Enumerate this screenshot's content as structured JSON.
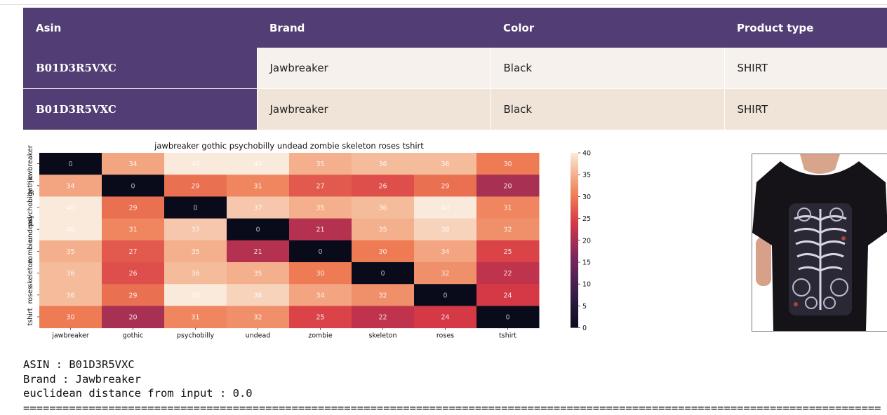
{
  "table": {
    "headers": [
      "Asin",
      "Brand",
      "Color",
      "Product type"
    ],
    "rows": [
      [
        "B01D3R5VXC",
        "Jawbreaker",
        "Black",
        "SHIRT"
      ],
      [
        "B01D3R5VXC",
        "Jawbreaker",
        "Black",
        "SHIRT"
      ]
    ]
  },
  "chart_data": {
    "type": "heatmap",
    "title": "jawbreaker gothic psychobilly undead zombie skeleton roses tshirt",
    "x_labels": [
      "jawbreaker",
      "gothic",
      "psychobilly",
      "undead",
      "zombie",
      "skeleton",
      "roses",
      "tshirt"
    ],
    "y_labels": [
      "jawbreaker",
      "gothic",
      "psychobilly",
      "undead",
      "zombie",
      "skeleton",
      "roses",
      "tshirt"
    ],
    "values": [
      [
        0,
        34,
        40,
        40,
        35,
        36,
        36,
        30
      ],
      [
        34,
        0,
        29,
        31,
        27,
        26,
        29,
        20
      ],
      [
        40,
        29,
        0,
        37,
        35,
        36,
        40,
        31
      ],
      [
        40,
        31,
        37,
        0,
        21,
        35,
        38,
        32
      ],
      [
        35,
        27,
        35,
        21,
        0,
        30,
        34,
        25
      ],
      [
        36,
        26,
        36,
        35,
        30,
        0,
        32,
        22
      ],
      [
        36,
        29,
        40,
        38,
        34,
        32,
        0,
        24
      ],
      [
        30,
        20,
        31,
        32,
        25,
        22,
        24,
        0
      ]
    ],
    "colorbar": {
      "min": 0,
      "max": 40,
      "ticks": [
        0,
        5,
        10,
        15,
        20,
        25,
        30,
        35,
        40
      ]
    }
  },
  "product_image": {
    "icon": "black-skeleton-shirt-photo"
  },
  "output": {
    "asin_line": "ASIN : B01D3R5VXC",
    "brand_line": "Brand : Jawbreaker",
    "distance_line": "euclidean distance from input : 0.0",
    "separator": "==================================================================================================================================="
  }
}
